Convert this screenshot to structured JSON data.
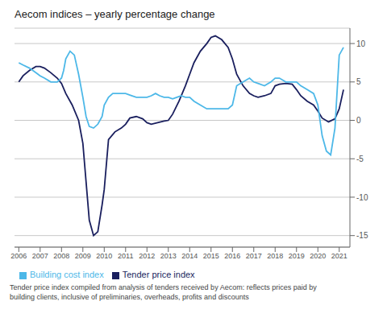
{
  "chart_data": {
    "type": "line",
    "title": "Aecom indices – yearly percentage change",
    "annotations": [
      "Tender price index compiled from analysis of tenders received by Aecom: reflects prices paid by\nbuilding clients, inclusive of preliminaries, overheads, profits and discounts"
    ],
    "series": [
      {
        "name": "Tender price index",
        "color": "#1a1f5e",
        "x": [
          2006.0,
          2006.2,
          2006.5,
          2006.8,
          2007.0,
          2007.2,
          2007.5,
          2007.8,
          2008.0,
          2008.2,
          2008.5,
          2008.8,
          2009.0,
          2009.15,
          2009.3,
          2009.5,
          2009.7,
          2009.9,
          2010.0,
          2010.2,
          2010.5,
          2010.8,
          2011.0,
          2011.2,
          2011.5,
          2011.8,
          2012.0,
          2012.2,
          2012.5,
          2012.8,
          2013.0,
          2013.2,
          2013.5,
          2013.8,
          2014.0,
          2014.2,
          2014.5,
          2014.8,
          2015.0,
          2015.2,
          2015.5,
          2015.8,
          2016.0,
          2016.2,
          2016.5,
          2016.8,
          2017.0,
          2017.2,
          2017.5,
          2017.8,
          2018.0,
          2018.2,
          2018.5,
          2018.8,
          2019.0,
          2019.2,
          2019.5,
          2019.8,
          2020.0,
          2020.2,
          2020.5,
          2020.8,
          2021.0,
          2021.2
        ],
        "values": [
          5.0,
          5.8,
          6.5,
          7.0,
          7.0,
          6.8,
          6.2,
          5.5,
          4.8,
          3.5,
          2.0,
          0.0,
          -3.0,
          -8.0,
          -13.0,
          -15.0,
          -14.5,
          -11.0,
          -9.0,
          -2.5,
          -1.5,
          -1.0,
          -0.5,
          0.3,
          0.5,
          0.2,
          -0.3,
          -0.5,
          -0.3,
          -0.1,
          0.0,
          0.8,
          2.5,
          4.5,
          6.0,
          7.5,
          9.0,
          10.0,
          10.8,
          11.0,
          10.5,
          9.5,
          8.0,
          6.0,
          4.5,
          3.5,
          3.2,
          3.0,
          3.2,
          3.5,
          4.5,
          4.7,
          4.8,
          4.7,
          4.0,
          3.2,
          2.5,
          2.0,
          1.2,
          0.3,
          -0.2,
          0.2,
          1.5,
          4.0
        ]
      },
      {
        "name": "Building cost index",
        "color": "#4db8e8",
        "x": [
          2006.0,
          2006.2,
          2006.5,
          2006.8,
          2007.0,
          2007.2,
          2007.5,
          2007.8,
          2008.0,
          2008.1,
          2008.2,
          2008.4,
          2008.6,
          2008.8,
          2009.0,
          2009.15,
          2009.3,
          2009.5,
          2009.7,
          2009.9,
          2010.0,
          2010.2,
          2010.4,
          2010.6,
          2010.8,
          2011.0,
          2011.2,
          2011.5,
          2011.8,
          2012.0,
          2012.2,
          2012.4,
          2012.6,
          2012.8,
          2013.0,
          2013.2,
          2013.4,
          2013.6,
          2013.8,
          2014.0,
          2014.2,
          2014.5,
          2014.8,
          2015.0,
          2015.2,
          2015.5,
          2015.8,
          2016.0,
          2016.2,
          2016.5,
          2016.8,
          2017.0,
          2017.2,
          2017.5,
          2017.8,
          2018.0,
          2018.2,
          2018.5,
          2018.8,
          2019.0,
          2019.2,
          2019.5,
          2019.8,
          2020.0,
          2020.1,
          2020.2,
          2020.4,
          2020.6,
          2020.8,
          2021.0,
          2021.2
        ],
        "values": [
          7.5,
          7.2,
          6.8,
          6.2,
          5.8,
          5.5,
          5.0,
          5.0,
          5.5,
          6.5,
          8.0,
          9.0,
          8.5,
          6.0,
          3.0,
          0.5,
          -0.8,
          -1.0,
          -0.5,
          0.5,
          2.0,
          3.0,
          3.5,
          3.5,
          3.5,
          3.5,
          3.3,
          3.0,
          3.0,
          3.0,
          3.2,
          3.5,
          3.2,
          3.0,
          3.0,
          2.8,
          3.0,
          3.2,
          3.0,
          3.0,
          2.5,
          2.0,
          1.5,
          1.5,
          1.5,
          1.5,
          1.5,
          2.0,
          4.5,
          5.0,
          5.5,
          5.0,
          4.8,
          4.5,
          5.0,
          5.5,
          5.5,
          5.0,
          5.0,
          5.0,
          4.5,
          4.0,
          3.5,
          2.0,
          0.0,
          -2.0,
          -4.0,
          -4.5,
          -1.0,
          8.5,
          9.5
        ]
      }
    ],
    "xlim": [
      2005.8,
      2021.5
    ],
    "xticks": [
      2006,
      2007,
      2008,
      2009,
      2010,
      2011,
      2012,
      2013,
      2014,
      2015,
      2016,
      2017,
      2018,
      2019,
      2020,
      2021
    ],
    "ylim": [
      -16.5,
      12
    ],
    "yticks": [
      -15,
      -10,
      -5,
      0,
      5,
      10
    ],
    "grid": true,
    "legend": "lower left"
  }
}
